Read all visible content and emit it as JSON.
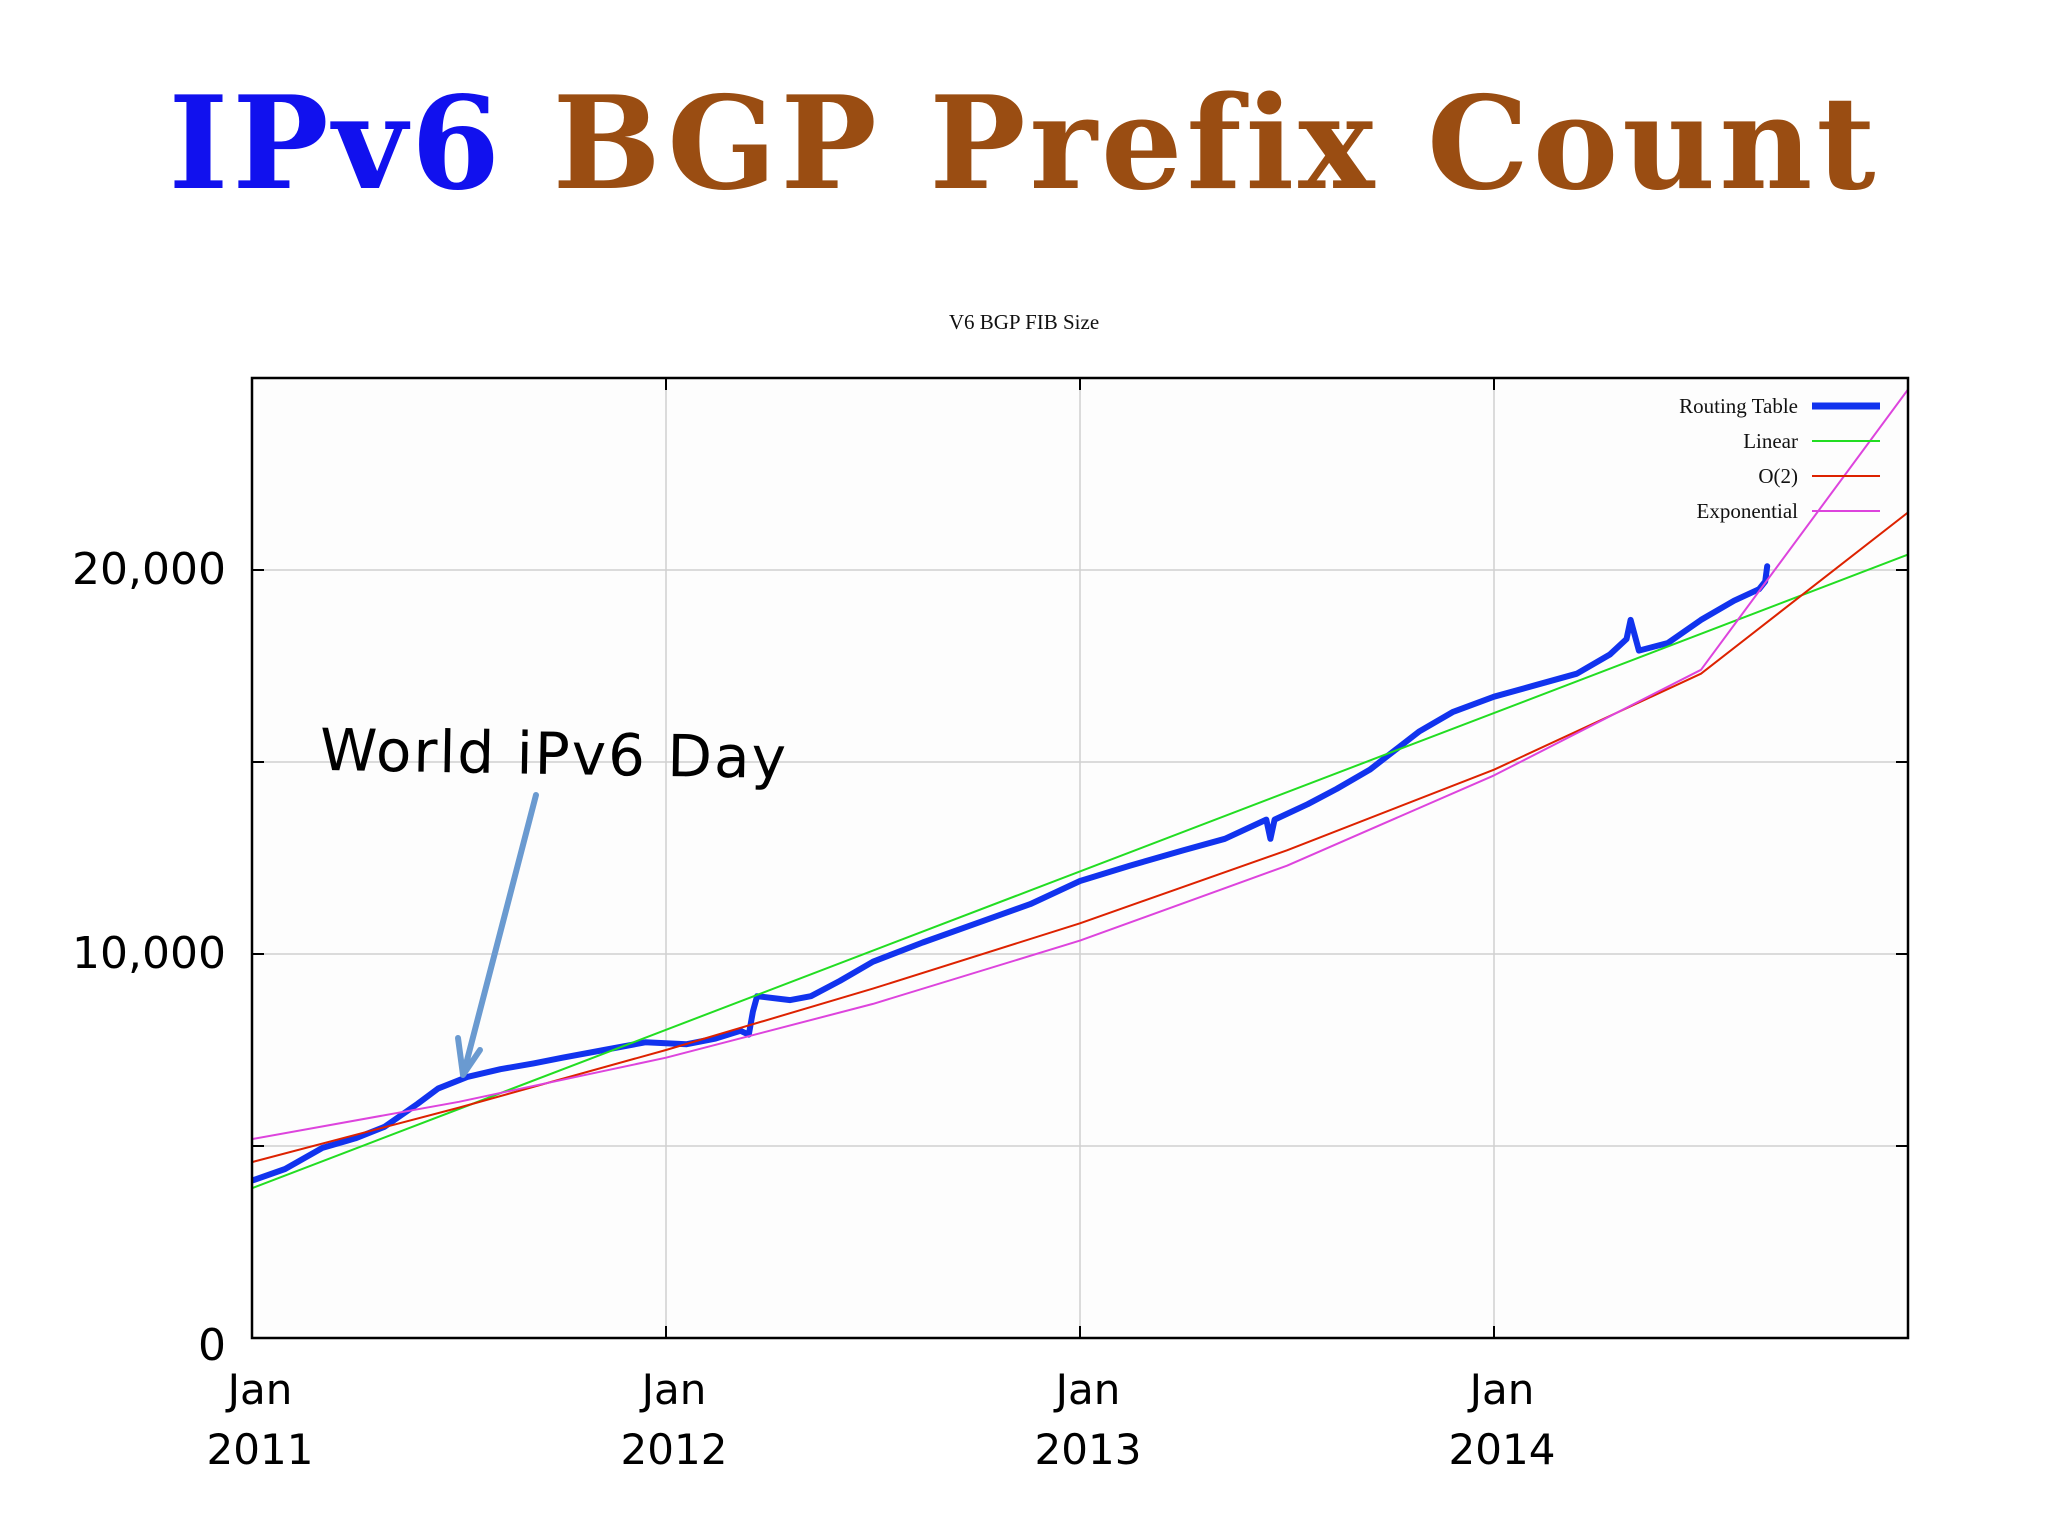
{
  "slide": {
    "title_part1": "IPv6",
    "title_part2": "BGP Prefix Count",
    "title_colors": {
      "part1": "#1111ee",
      "part2": "#9a4d12"
    }
  },
  "annotation": {
    "text": "World iPv6 Day",
    "arrow_color": "#6a9ad0"
  },
  "chart_data": {
    "type": "line",
    "title": "V6 BGP FIB Size",
    "xlabel": "",
    "ylabel": "",
    "xlim": [
      2011.0,
      2015.0
    ],
    "ylim": [
      0,
      25000
    ],
    "grid": true,
    "legend_position": "top-right",
    "x_ticks": [
      {
        "value": 2011.0,
        "label_line1": "Jan",
        "label_line2": "2011"
      },
      {
        "value": 2012.0,
        "label_line1": "Jan",
        "label_line2": "2012"
      },
      {
        "value": 2013.0,
        "label_line1": "Jan",
        "label_line2": "2013"
      },
      {
        "value": 2014.0,
        "label_line1": "Jan",
        "label_line2": "2014"
      }
    ],
    "y_ticks": [
      {
        "value": 0,
        "label": "0"
      },
      {
        "value": 5000,
        "label": ""
      },
      {
        "value": 10000,
        "label": "10,000"
      },
      {
        "value": 15000,
        "label": ""
      },
      {
        "value": 20000,
        "label": "20,000"
      }
    ],
    "series": [
      {
        "name": "Routing Table",
        "color": "#1133ee",
        "width": 6,
        "x": [
          2011.0,
          2011.08,
          2011.17,
          2011.25,
          2011.32,
          2011.4,
          2011.45,
          2011.52,
          2011.6,
          2011.68,
          2011.75,
          2011.85,
          2011.95,
          2012.05,
          2012.12,
          2012.18,
          2012.2,
          2012.21,
          2012.22,
          2012.3,
          2012.35,
          2012.42,
          2012.5,
          2012.62,
          2012.75,
          2012.88,
          2013.0,
          2013.12,
          2013.25,
          2013.35,
          2013.45,
          2013.46,
          2013.47,
          2013.55,
          2013.62,
          2013.7,
          2013.76,
          2013.82,
          2013.9,
          2014.0,
          2014.1,
          2014.2,
          2014.28,
          2014.32,
          2014.33,
          2014.35,
          2014.42,
          2014.5,
          2014.58,
          2014.64,
          2014.655,
          2014.66
        ],
        "values": [
          4100,
          4400,
          4950,
          5200,
          5500,
          6100,
          6500,
          6800,
          7000,
          7150,
          7300,
          7500,
          7700,
          7650,
          7800,
          8000,
          7900,
          8500,
          8900,
          8800,
          8900,
          9300,
          9800,
          10300,
          10800,
          11300,
          11900,
          12300,
          12700,
          13000,
          13500,
          13000,
          13500,
          13900,
          14300,
          14800,
          15300,
          15800,
          16300,
          16700,
          17000,
          17300,
          17800,
          18200,
          18700,
          17900,
          18100,
          18700,
          19200,
          19500,
          19700,
          20100
        ]
      },
      {
        "name": "Linear",
        "color": "#22dd22",
        "width": 2,
        "x": [
          2011.0,
          2015.0
        ],
        "values": [
          3900,
          20400
        ]
      },
      {
        "name": "O(2)",
        "color": "#dd2200",
        "width": 2,
        "x": [
          2011.0,
          2011.5,
          2012.0,
          2012.5,
          2013.0,
          2013.5,
          2014.0,
          2014.5,
          2015.0
        ],
        "values": [
          4580,
          6000,
          7500,
          9100,
          10800,
          12700,
          14800,
          17300,
          21500
        ]
      },
      {
        "name": "Exponential",
        "color": "#dd44dd",
        "width": 2,
        "x": [
          2011.0,
          2011.5,
          2012.0,
          2012.5,
          2013.0,
          2013.5,
          2014.0,
          2014.5,
          2015.0
        ],
        "values": [
          5180,
          6150,
          7300,
          8700,
          10350,
          12300,
          14650,
          17400,
          24700
        ]
      }
    ],
    "legend": [
      "Routing Table",
      "Linear",
      "O(2)",
      "Exponential"
    ]
  }
}
